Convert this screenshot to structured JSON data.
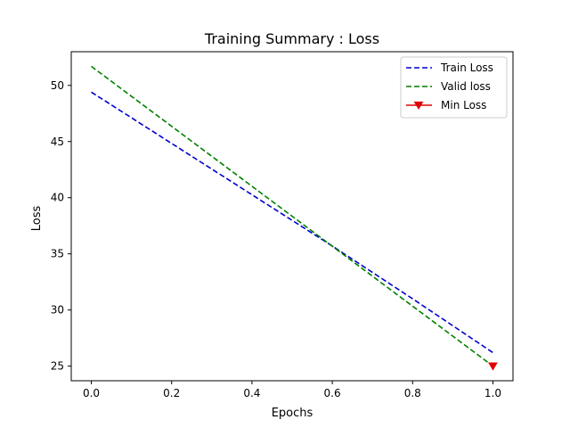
{
  "chart_data": {
    "type": "line",
    "title": "Training Summary : Loss",
    "xlabel": "Epochs",
    "ylabel": "Loss",
    "xlim": [
      -0.05,
      1.05
    ],
    "ylim": [
      23.7,
      53.0
    ],
    "xticks": [
      0.0,
      0.2,
      0.4,
      0.6,
      0.8,
      1.0
    ],
    "xtick_labels": [
      "0.0",
      "0.2",
      "0.4",
      "0.6",
      "0.8",
      "1.0"
    ],
    "yticks": [
      25,
      30,
      35,
      40,
      45,
      50
    ],
    "ytick_labels": [
      "25",
      "30",
      "35",
      "40",
      "45",
      "50"
    ],
    "grid": false,
    "legend_position": "top-right",
    "series": [
      {
        "name": "Train Loss",
        "color": "#0000cc",
        "style": "dashed",
        "x": [
          0.0,
          0.6,
          0.8,
          1.0
        ],
        "y": [
          49.4,
          35.7,
          31.0,
          26.2
        ]
      },
      {
        "name": "Valid loss",
        "color": "#007f00",
        "style": "dashed",
        "x": [
          0.0,
          1.0
        ],
        "y": [
          51.7,
          25.0
        ]
      },
      {
        "name": "Min Loss",
        "color": "#e00000",
        "style": "marker",
        "marker": "triangle-down",
        "x": [
          1.0
        ],
        "y": [
          25.0
        ]
      }
    ]
  }
}
